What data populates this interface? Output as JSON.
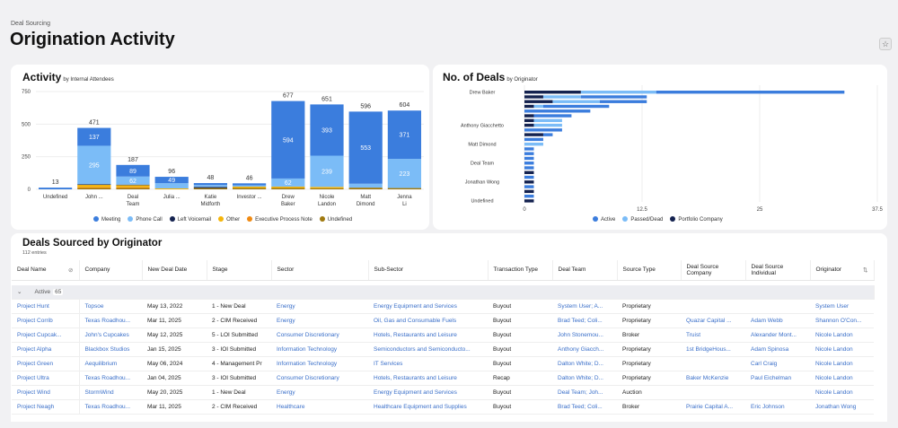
{
  "breadcrumb": "Deal Sourcing",
  "title": "Origination Activity",
  "activity": {
    "title": "Activity",
    "subtitle": "by Internal Attendees"
  },
  "deals_chart": {
    "title": "No. of Deals",
    "subtitle": "by Originator"
  },
  "chart_data": [
    {
      "type": "bar",
      "stacked": true,
      "title": "Activity",
      "subtitle": "by Internal Attendees",
      "ylim": [
        0,
        750
      ],
      "yticks": [
        "0",
        "250",
        "500",
        "750"
      ],
      "categories": [
        "Undefined",
        "John ...",
        "Deal Team",
        "Julia ...",
        "Katie Midforth",
        "Investor ...",
        "Drew Baker",
        "Nicole Landon",
        "Matt Dimond",
        "Jenna Li"
      ],
      "totals": [
        13,
        471,
        187,
        96,
        48,
        46,
        677,
        651,
        596,
        604
      ],
      "series": [
        {
          "name": "Meeting",
          "color": "#3b7ddd",
          "values": [
            13,
            137,
            89,
            49,
            15,
            15,
            594,
            393,
            553,
            371
          ]
        },
        {
          "name": "Phone Call",
          "color": "#7bbcf7",
          "values": [
            0,
            295,
            62,
            40,
            15,
            10,
            62,
            239,
            30,
            223
          ]
        },
        {
          "name": "Left Voicemail",
          "color": "#14224f",
          "values": [
            0,
            5,
            4,
            0,
            8,
            0,
            0,
            0,
            0,
            0
          ]
        },
        {
          "name": "Other",
          "color": "#f5b50a",
          "values": [
            0,
            18,
            16,
            7,
            0,
            10,
            10,
            10,
            0,
            0
          ]
        },
        {
          "name": "Executive Process Note",
          "color": "#f08a12",
          "values": [
            0,
            6,
            6,
            0,
            0,
            0,
            0,
            0,
            0,
            0
          ]
        },
        {
          "name": "Undefined",
          "color": "#a07a10",
          "values": [
            0,
            10,
            10,
            0,
            10,
            11,
            11,
            9,
            13,
            10
          ]
        }
      ],
      "labeled": {
        "Meeting": [
          false,
          true,
          true,
          true,
          false,
          false,
          true,
          true,
          true,
          true
        ],
        "Phone Call": [
          false,
          true,
          true,
          false,
          false,
          false,
          true,
          true,
          false,
          true
        ]
      }
    },
    {
      "type": "bar",
      "orientation": "horizontal",
      "stacked": true,
      "title": "No. of Deals",
      "subtitle": "by Originator",
      "xlim": [
        0,
        37.5
      ],
      "xticks": [
        "0",
        "12.5",
        "25",
        "37.5"
      ],
      "categories": [
        "Drew Baker",
        "",
        "",
        "",
        "",
        "",
        "",
        "Anthony Giacchetto",
        "",
        "",
        "",
        "Matt Dimond",
        "",
        "",
        "",
        "Deal Team",
        "",
        "",
        "",
        "Jonathan Wong",
        "",
        "",
        "",
        "Undefined"
      ],
      "series": [
        {
          "name": "Portfolio Company",
          "color": "#14224f",
          "values": [
            6,
            2,
            3,
            1,
            0,
            1,
            1,
            1,
            0,
            2,
            0,
            0,
            0,
            0,
            0,
            0,
            0,
            1,
            0,
            1,
            0,
            1,
            0,
            1
          ]
        },
        {
          "name": "Passed/Dead",
          "color": "#7bbcf7",
          "values": [
            8,
            4,
            5,
            1,
            0,
            0,
            3,
            3,
            0,
            0,
            0,
            2,
            0,
            0,
            0,
            0,
            0,
            0,
            0,
            0,
            0,
            0,
            0,
            0
          ]
        },
        {
          "name": "Active",
          "color": "#3b7ddd",
          "values": [
            20,
            7,
            5,
            7,
            7,
            4,
            0,
            0,
            4,
            1,
            2,
            0,
            1,
            1,
            1,
            1,
            1,
            0,
            1,
            0,
            1,
            0,
            1,
            0
          ]
        }
      ],
      "legend": [
        "Active",
        "Passed/Dead",
        "Portfolio Company"
      ]
    }
  ],
  "table": {
    "title": "Deals Sourced by Originator",
    "count": "112 entries",
    "columns": [
      "Deal Name",
      "Company",
      "New Deal Date",
      "Stage",
      "Sector",
      "Sub-Sector",
      "Transaction Type",
      "Deal Team",
      "Source Type",
      "Deal Source Company",
      "Deal Source Individual",
      "Originator"
    ],
    "group": {
      "label": "Active",
      "count": "65"
    },
    "rows": [
      [
        "Project Hunt",
        "Topsoe",
        "May 13, 2022",
        "1 - New Deal",
        "Energy",
        "Energy Equipment and Services",
        "Buyout",
        "System User; A...",
        "Proprietary",
        "",
        "",
        "System User"
      ],
      [
        "Project Corrib",
        "Texas Roadhou...",
        "Mar 11, 2025",
        "2 - CIM Received",
        "Energy",
        "Oil, Gas and Consumable Fuels",
        "Buyout",
        "Brad Teed; Coli...",
        "Proprietary",
        "Quazar Capital ...",
        "Adam Webb",
        "Shannon O'Con..."
      ],
      [
        "Project Cupcak...",
        "John's Cupcakes",
        "May 12, 2025",
        "5 - LOI Submitted",
        "Consumer Discretionary",
        "Hotels, Restaurants and Leisure",
        "Buyout",
        "John Stonemou...",
        "Broker",
        "Truist",
        "Alexander Mont...",
        "Nicole Landon"
      ],
      [
        "Project Alpha",
        "Blackbox Studios",
        "Jan 15, 2025",
        "3 - IOI Submitted",
        "Information Technology",
        "Semiconductors and Semiconducto...",
        "Buyout",
        "Anthony Giacch...",
        "Proprietary",
        "1st BridgeHous...",
        "Adam Spinosa",
        "Nicole Landon"
      ],
      [
        "Project Green",
        "Aequilibrium",
        "May 06, 2024",
        "4 - Management Pr",
        "Information Technology",
        "IT Services",
        "Buyout",
        "Dalton White; D...",
        "Proprietary",
        "",
        "Carl Craig",
        "Nicole Landon"
      ],
      [
        "Project Ultra",
        "Texas Roadhou...",
        "Jan 04, 2025",
        "3 - IOI Submitted",
        "Consumer Discretionary",
        "Hotels, Restaurants and Leisure",
        "Recap",
        "Dalton White; D...",
        "Proprietary",
        "Baker McKenzie",
        "Paul Eichelman",
        "Nicole Landon"
      ],
      [
        "Project Wind",
        "StormWind",
        "May 20, 2025",
        "1 - New Deal",
        "Energy",
        "Energy Equipment and Services",
        "Buyout",
        "Deal Team; Joh...",
        "Auction",
        "",
        "",
        "Nicole Landon"
      ],
      [
        "Project Neagh",
        "Texas Roadhou...",
        "Mar 11, 2025",
        "2 - CIM Received",
        "Healthcare",
        "Healthcare Equipment and Supplies",
        "Buyout",
        "Brad Teed; Coli...",
        "Broker",
        "Prairie Capital A...",
        "Eric Johnson",
        "Jonathan Wong"
      ]
    ]
  }
}
